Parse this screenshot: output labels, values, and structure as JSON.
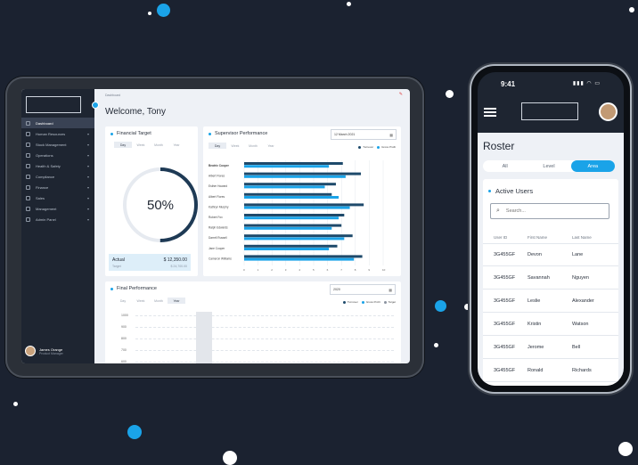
{
  "colors": {
    "accent": "#1aa3e8",
    "bar_dark": "#1e4a6b",
    "bar_light": "#1aa3e8",
    "sidebar": "#1e2531"
  },
  "tablet": {
    "breadcrumb": "Dashboard",
    "welcome": "Welcome, Tony",
    "sidebar": {
      "items": [
        {
          "label": "Dashboard",
          "icon": "grid-icon"
        },
        {
          "label": "Human Resources",
          "icon": "people-icon"
        },
        {
          "label": "Stock Management",
          "icon": "box-icon"
        },
        {
          "label": "Operations",
          "icon": "wrench-icon"
        },
        {
          "label": "Health & Safety",
          "icon": "shield-icon"
        },
        {
          "label": "Compliance",
          "icon": "document-icon"
        },
        {
          "label": "Finance",
          "icon": "coin-icon"
        },
        {
          "label": "Sales",
          "icon": "tag-icon"
        },
        {
          "label": "Management",
          "icon": "chart-icon"
        },
        {
          "label": "Admin Panel",
          "icon": "gear-icon"
        }
      ],
      "user": {
        "name": "James Orange",
        "role": "Product Manager"
      }
    },
    "financial": {
      "title": "Financial Target",
      "tabs": [
        "Day",
        "Week",
        "Month",
        "Year"
      ],
      "active_tab": "Day",
      "percent_label": "50%",
      "percent_value": 0.5,
      "actual_label": "Actual",
      "actual_value": "$ 12,350.00",
      "target_label": "Target",
      "target_value": "$ 24,700.00"
    },
    "supervisor": {
      "title": "Supervisor Performance",
      "date": "12 March 2021",
      "tabs": [
        "Day",
        "Week",
        "Month",
        "Year"
      ],
      "active_tab": "Day",
      "legend": [
        "Turnover",
        "Gross Profit"
      ]
    },
    "final": {
      "title": "Final Performance",
      "year": "2020",
      "tabs": [
        "Day",
        "Week",
        "Month",
        "Year"
      ],
      "active_tab": "Year",
      "legend": [
        "Turnover",
        "Gross Profit",
        "Target"
      ],
      "yticks": [
        "1000",
        "900",
        "800",
        "700",
        "600"
      ]
    }
  },
  "chart_data": {
    "type": "bar",
    "orientation": "horizontal",
    "categories": [
      "Beatrix Cooper",
      "Albert Flores",
      "Esther Howard",
      "Albert Flores",
      "Kathryn Murphy",
      "Robert Fox",
      "Ralph Edwards",
      "Darrell Russell",
      "Jane Cooper",
      "Cameron Williams"
    ],
    "series": [
      {
        "name": "Turnover",
        "values": [
          7.1,
          8.4,
          6.6,
          6.3,
          8.6,
          7.2,
          7.0,
          7.8,
          6.7,
          8.5
        ]
      },
      {
        "name": "Gross Profit",
        "values": [
          6.1,
          7.3,
          5.8,
          6.8,
          7.6,
          6.8,
          6.3,
          7.2,
          6.1,
          7.9
        ]
      }
    ],
    "xticks": [
      "0",
      "1",
      "2",
      "3",
      "4",
      "5",
      "6",
      "7",
      "8",
      "9",
      "10"
    ],
    "xlim": [
      0,
      10
    ]
  },
  "phone": {
    "time": "9:41",
    "status_icons": "▮▮▮ ◠ ▭",
    "title": "Roster",
    "tabs": [
      "All",
      "Level",
      "Area"
    ],
    "active_tab": "Area",
    "card_title": "Active Users",
    "search_placeholder": "Search...",
    "columns": [
      "User ID",
      "First Name",
      "Last Name"
    ],
    "rows": [
      [
        "3G455GF",
        "Devon",
        "Lane"
      ],
      [
        "3G455GF",
        "Savannah",
        "Nguyen"
      ],
      [
        "3G455GF",
        "Leslie",
        "Alexander"
      ],
      [
        "3G455GF",
        "Kristin",
        "Watson"
      ],
      [
        "3G455GF",
        "Jerome",
        "Bell"
      ],
      [
        "3G455GF",
        "Ronald",
        "Richards"
      ]
    ]
  }
}
